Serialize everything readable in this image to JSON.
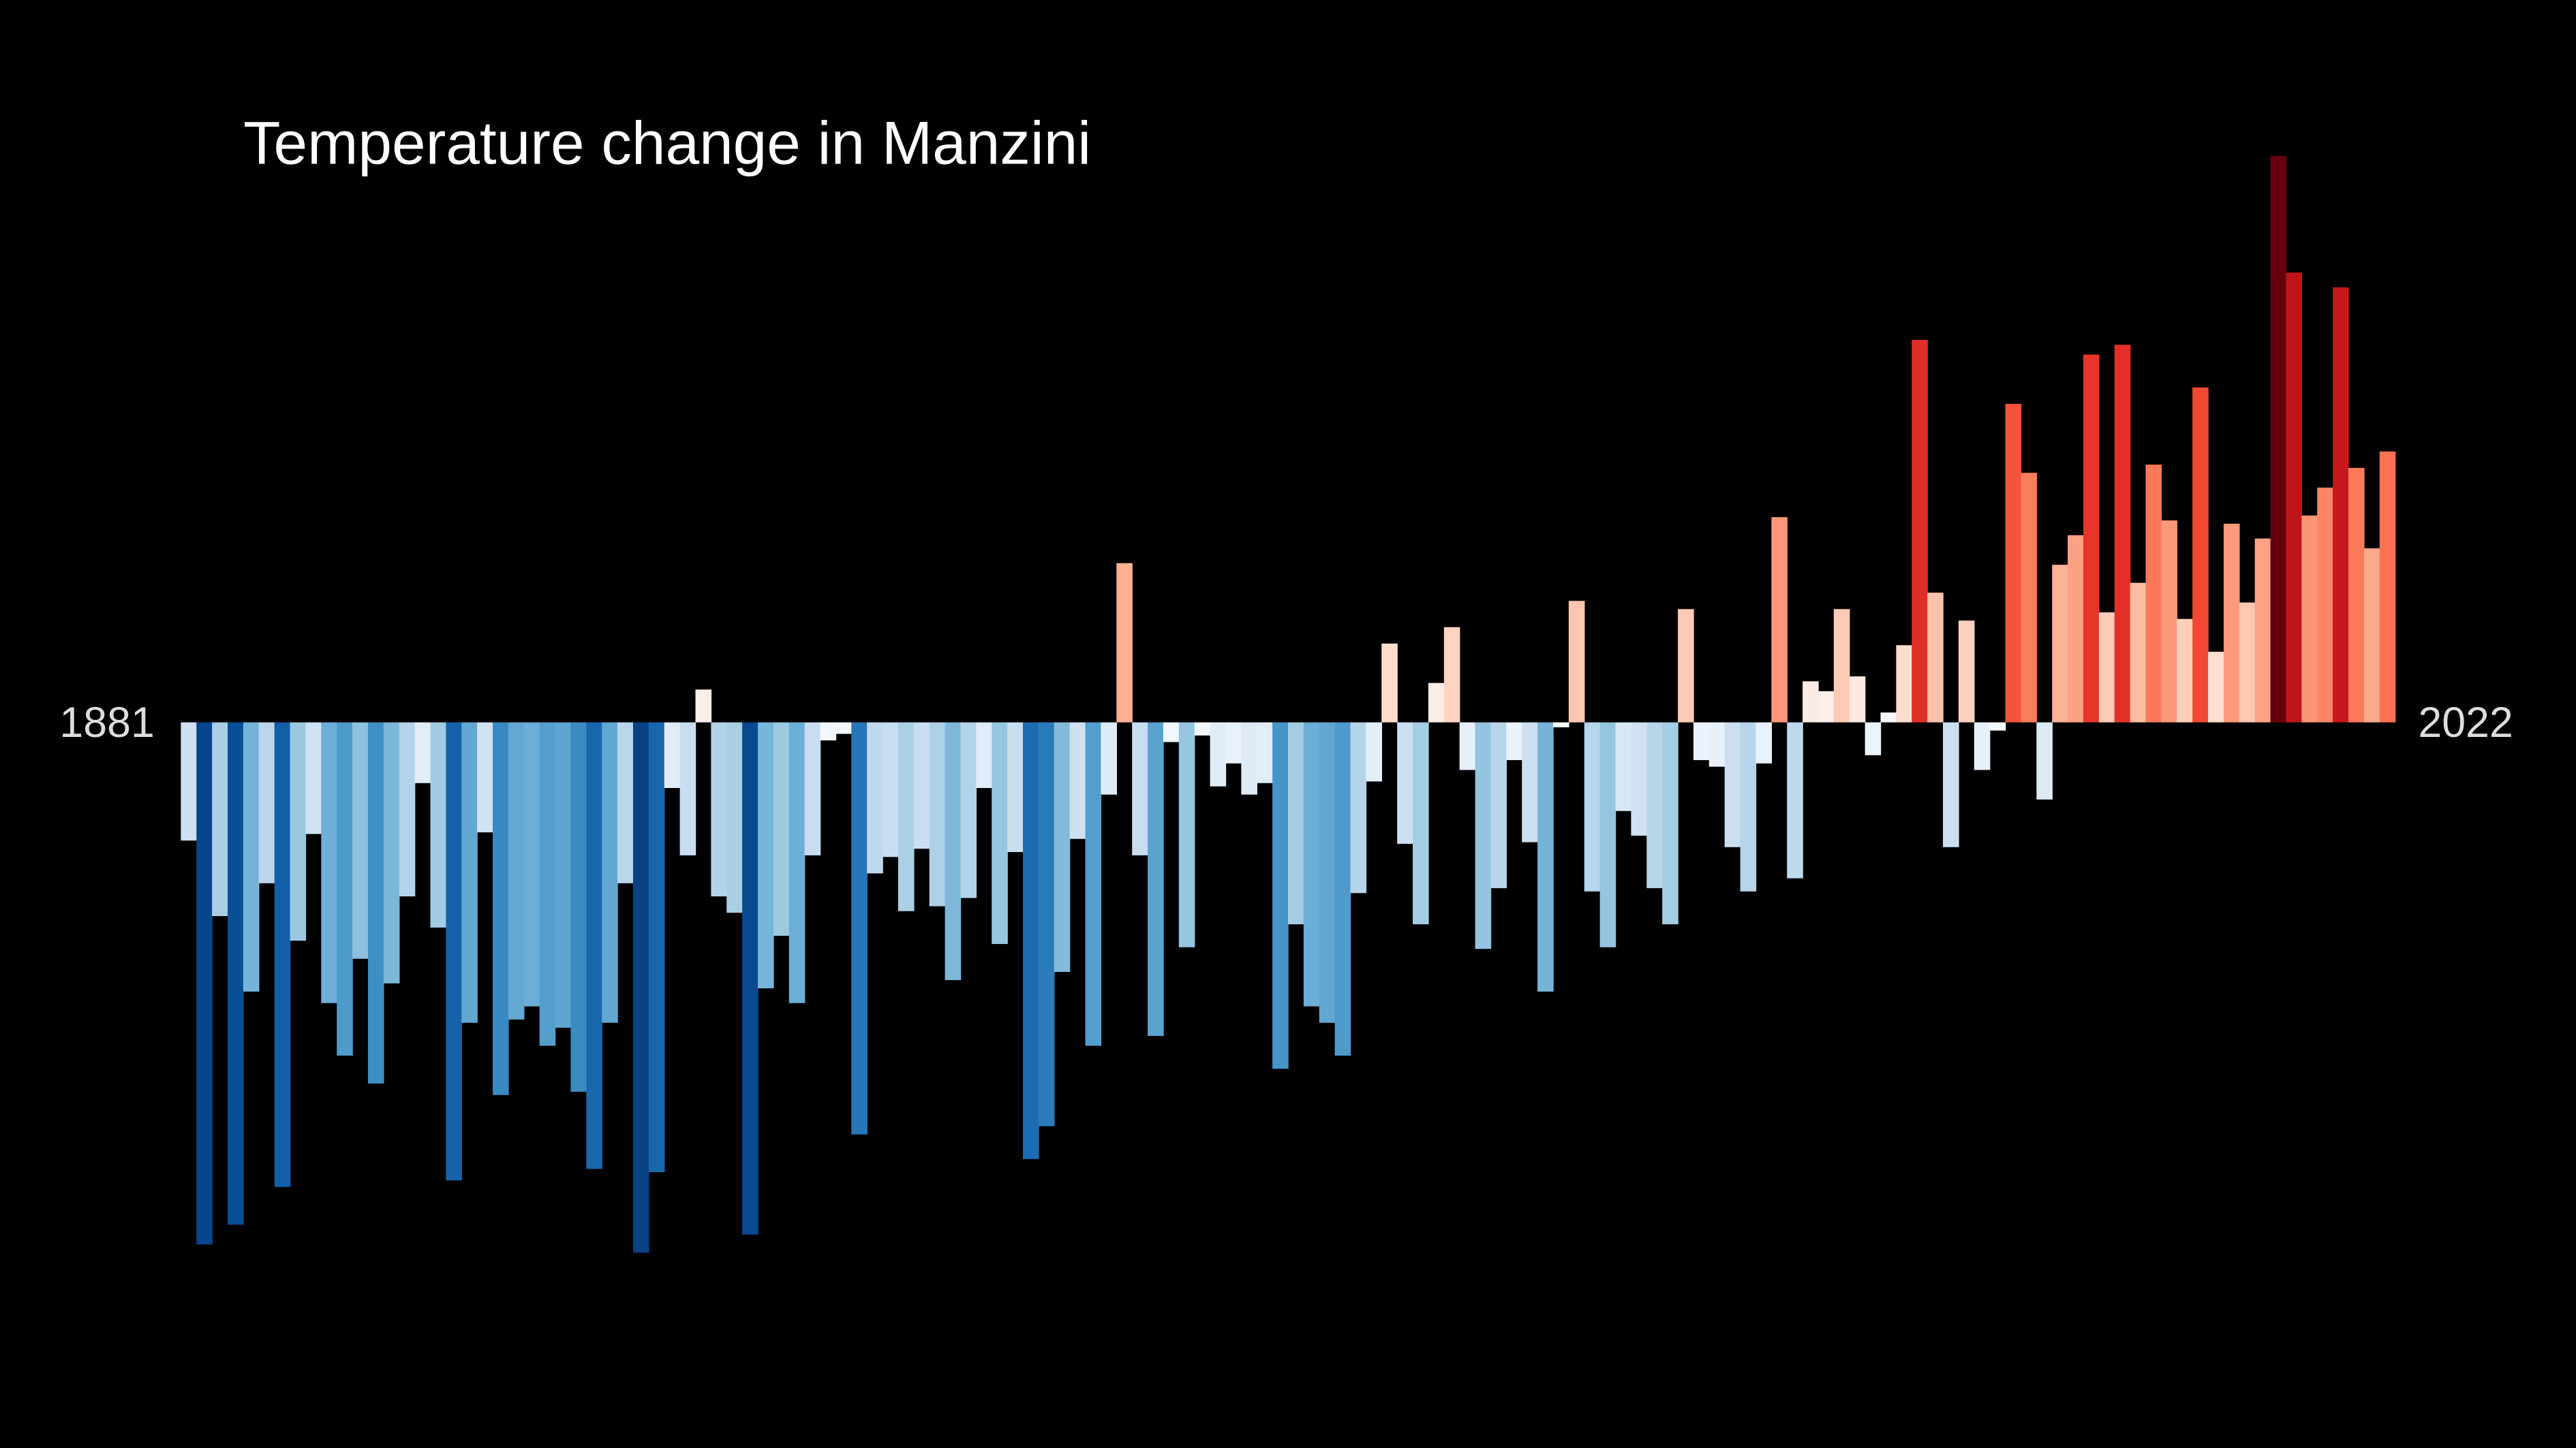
{
  "chart_data": {
    "type": "bar",
    "title": "Temperature change in Manzini",
    "categories": [
      "1881",
      null,
      null,
      null,
      null,
      null,
      null,
      null,
      null,
      null,
      null,
      null,
      null,
      null,
      null,
      null,
      null,
      null,
      null,
      null,
      null,
      null,
      null,
      null,
      null,
      null,
      null,
      null,
      null,
      null,
      null,
      null,
      null,
      null,
      null,
      null,
      null,
      null,
      null,
      null,
      null,
      null,
      null,
      null,
      null,
      null,
      null,
      null,
      null,
      null,
      null,
      null,
      null,
      null,
      null,
      null,
      null,
      null,
      null,
      null,
      null,
      null,
      null,
      null,
      null,
      null,
      null,
      null,
      null,
      null,
      null,
      null,
      null,
      null,
      null,
      null,
      null,
      null,
      null,
      null,
      null,
      null,
      null,
      null,
      null,
      null,
      null,
      null,
      null,
      null,
      null,
      null,
      null,
      null,
      null,
      null,
      null,
      null,
      null,
      null,
      null,
      null,
      null,
      null,
      null,
      null,
      null,
      null,
      null,
      null,
      null,
      null,
      null,
      null,
      null,
      null,
      null,
      null,
      null,
      null,
      null,
      null,
      null,
      null,
      null,
      null,
      null,
      null,
      null,
      null,
      null,
      null,
      null,
      null,
      null,
      null,
      null,
      null,
      null,
      null,
      null,
      "2022"
    ],
    "values": [
      -0.72,
      -3.18,
      -1.18,
      -3.06,
      -1.64,
      -0.98,
      -2.83,
      -1.33,
      -0.68,
      -1.71,
      -2.03,
      -1.44,
      -2.2,
      -1.59,
      -1.06,
      -0.37,
      -1.25,
      -2.79,
      -1.83,
      -0.67,
      -2.27,
      -1.81,
      -1.73,
      -1.97,
      -1.86,
      -2.25,
      -2.72,
      -1.83,
      -0.98,
      -3.23,
      -2.74,
      -0.4,
      -0.81,
      0.2,
      -1.06,
      -1.16,
      -3.12,
      -1.62,
      -1.3,
      -1.71,
      -0.81,
      -0.11,
      -0.07,
      -2.51,
      -0.92,
      -0.82,
      -1.15,
      -0.77,
      -1.12,
      -1.57,
      -1.07,
      -0.4,
      -1.35,
      -0.79,
      -2.66,
      -2.46,
      -1.52,
      -0.71,
      -1.97,
      -0.44,
      0.97,
      -0.81,
      -1.91,
      -0.12,
      -1.37,
      -0.08,
      -0.39,
      -0.25,
      -0.44,
      -0.37,
      -2.11,
      -1.23,
      -1.73,
      -1.83,
      -2.03,
      -1.04,
      -0.36,
      0.48,
      -0.74,
      -1.23,
      0.24,
      0.58,
      -0.29,
      -1.38,
      -1.01,
      -0.23,
      -0.73,
      -1.64,
      -0.03,
      0.74,
      -1.03,
      -1.37,
      -0.54,
      -0.69,
      -1.01,
      -1.23,
      0.69,
      -0.23,
      -0.27,
      -0.76,
      -1.03,
      -0.25,
      1.25,
      -0.95,
      0.25,
      0.19,
      0.69,
      0.28,
      -0.2,
      0.06,
      0.47,
      2.33,
      0.79,
      -0.76,
      0.62,
      -0.29,
      -0.05,
      1.94,
      1.52,
      -0.47,
      0.96,
      1.14,
      2.24,
      0.67,
      2.3,
      0.85,
      1.57,
      1.23,
      0.63,
      2.04,
      0.43,
      1.21,
      0.73,
      1.12,
      3.45,
      2.74,
      1.26,
      1.43,
      2.65,
      1.55,
      1.06,
      1.65
    ],
    "ylim": [
      -4.42,
      4.4
    ],
    "colormap": [
      "#08306b",
      "#08519c",
      "#2171b5",
      "#4292c6",
      "#6baed6",
      "#9ecae1",
      "#c6dbef",
      "#deebf7",
      "#f7fbff",
      "#fee0d2",
      "#fcbba1",
      "#fc9272",
      "#fb6a4a",
      "#ef3b2c",
      "#cb181d",
      "#a50f15",
      "#67000d"
    ]
  }
}
